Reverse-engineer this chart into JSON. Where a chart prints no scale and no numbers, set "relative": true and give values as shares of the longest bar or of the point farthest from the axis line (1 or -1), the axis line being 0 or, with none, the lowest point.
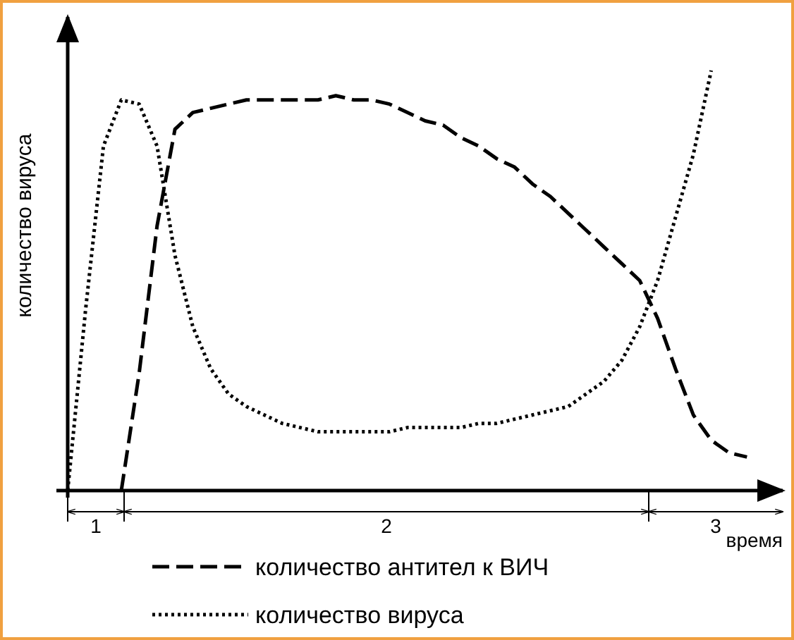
{
  "chart_data": {
    "type": "line",
    "relative": true,
    "xlabel": "время",
    "ylabel": "количество вируса",
    "legend": "bottom",
    "marker": "none",
    "categories": [
      null,
      null,
      null,
      null,
      null,
      null,
      null,
      null,
      null,
      null,
      null,
      null,
      null,
      null,
      null,
      null,
      null,
      null,
      null,
      null,
      null,
      null,
      null,
      null,
      null,
      null,
      null,
      null,
      null,
      null,
      null,
      null,
      null,
      null,
      null,
      null,
      null,
      null,
      null,
      null,
      null
    ],
    "series": [
      {
        "name": "количество антител к ВИЧ",
        "color": "#000000",
        "line_style": "dashed",
        "values": [
          null,
          null,
          null,
          0,
          0.28,
          0.63,
          0.86,
          0.9,
          0.91,
          0.92,
          0.93,
          0.93,
          0.93,
          0.93,
          0.93,
          0.94,
          0.93,
          0.93,
          0.92,
          0.9,
          0.88,
          0.87,
          0.84,
          0.82,
          0.79,
          0.77,
          0.73,
          0.7,
          0.66,
          0.62,
          0.58,
          0.54,
          0.5,
          0.41,
          0.29,
          0.18,
          0.12,
          0.09,
          0.08,
          null,
          null
        ]
      },
      {
        "name": "количество вируса",
        "color": "#000000",
        "line_style": "dotted",
        "values": [
          0,
          0.43,
          0.82,
          0.93,
          0.92,
          0.82,
          0.56,
          0.39,
          0.29,
          0.23,
          0.2,
          0.18,
          0.16,
          0.15,
          0.14,
          0.14,
          0.14,
          0.14,
          0.14,
          0.15,
          0.15,
          0.15,
          0.15,
          0.16,
          0.16,
          0.17,
          0.18,
          0.19,
          0.2,
          0.23,
          0.26,
          0.31,
          0.39,
          0.5,
          0.65,
          0.8,
          1,
          null,
          null,
          null,
          null
        ]
      }
    ],
    "annotations": [
      "1",
      "2",
      "3"
    ]
  }
}
